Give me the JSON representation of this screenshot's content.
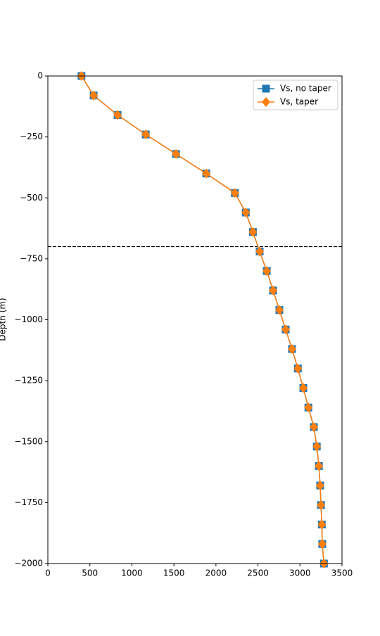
{
  "chart_data": {
    "type": "line",
    "ylabel": "Depth (m)",
    "xlim": [
      0,
      3500
    ],
    "xticks": [
      0,
      500,
      1000,
      1500,
      2000,
      2500,
      3000,
      3500
    ],
    "ylim": [
      -2000,
      0
    ],
    "yticks": [
      {
        "value": -2000,
        "label": "−2000"
      },
      {
        "value": -1750,
        "label": "−1750"
      },
      {
        "value": -1500,
        "label": "−1500"
      },
      {
        "value": -1250,
        "label": "−1250"
      },
      {
        "value": -1000,
        "label": "−1000"
      },
      {
        "value": -750,
        "label": "−750"
      },
      {
        "value": -500,
        "label": "−500"
      },
      {
        "value": -250,
        "label": "−250"
      },
      0
    ],
    "hline": -700,
    "legend": "upper right",
    "series": [
      {
        "name": "Vs, no taper",
        "color": "#1f77b4",
        "marker": "square",
        "x": [
          400,
          545,
          830,
          1165,
          1525,
          1885,
          2225,
          2355,
          2440,
          2520,
          2605,
          2680,
          2755,
          2830,
          2905,
          2975,
          3040,
          3100,
          3165,
          3200,
          3225,
          3240,
          3250,
          3260,
          3265,
          3285
        ],
        "y": [
          0,
          -80,
          -160,
          -240,
          -320,
          -400,
          -480,
          -560,
          -640,
          -720,
          -800,
          -880,
          -960,
          -1040,
          -1120,
          -1200,
          -1280,
          -1360,
          -1440,
          -1520,
          -1600,
          -1680,
          -1760,
          -1840,
          -1920,
          -2000
        ]
      },
      {
        "name": "Vs, taper",
        "color": "#ff7f0e",
        "marker": "diamond",
        "x": [
          400,
          545,
          830,
          1165,
          1525,
          1885,
          2225,
          2355,
          2440,
          2520,
          2605,
          2680,
          2755,
          2830,
          2905,
          2975,
          3040,
          3100,
          3165,
          3200,
          3225,
          3240,
          3250,
          3260,
          3265,
          3285
        ],
        "y": [
          0,
          -80,
          -160,
          -240,
          -320,
          -400,
          -480,
          -560,
          -640,
          -720,
          -800,
          -880,
          -960,
          -1040,
          -1120,
          -1200,
          -1280,
          -1360,
          -1440,
          -1520,
          -1600,
          -1680,
          -1760,
          -1840,
          -1920,
          -2000
        ]
      }
    ]
  }
}
